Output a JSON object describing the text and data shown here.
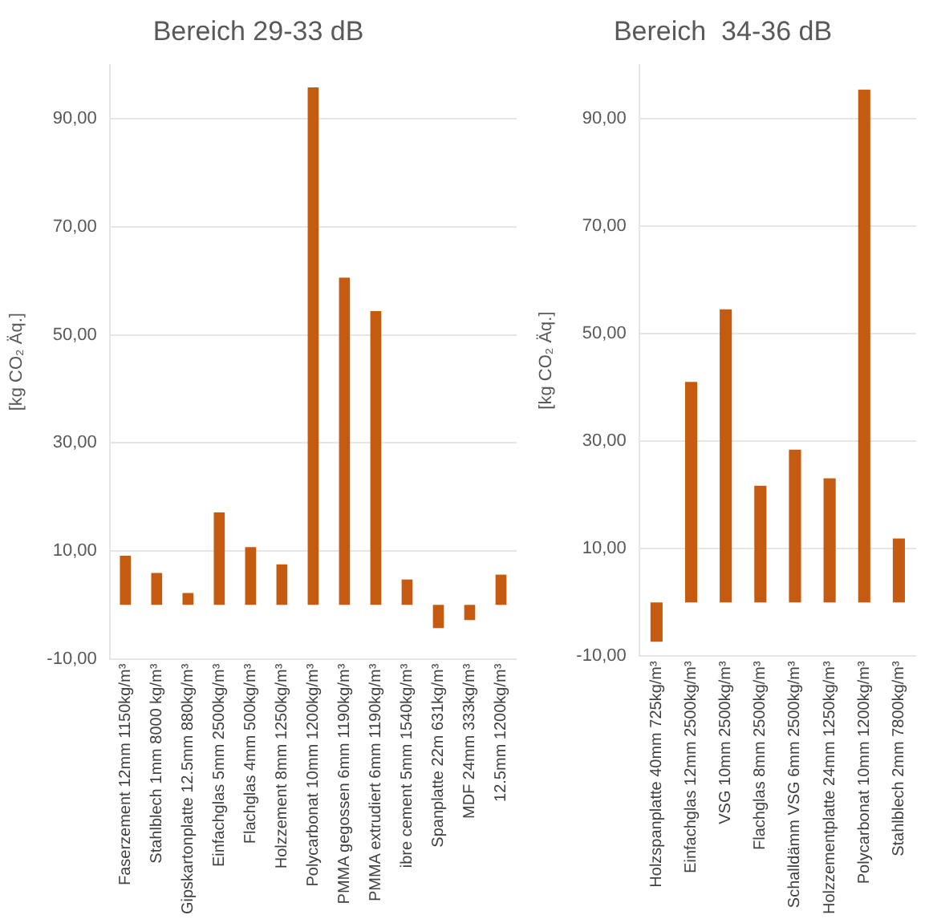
{
  "chart_data": [
    {
      "type": "bar",
      "title": "Bereich 29-33 dB",
      "ylabel": "[kg CO₂ Äq.]",
      "categories": [
        "Faserzement 12mm 1150kg/m³",
        "Stahlblech 1mm 8000 kg/m³",
        "Gipskartonplatte 12.5mm 880kg/m³",
        "Einfachglas 5mm 2500kg/m³",
        "Flachglas 4mm 500kg/m³",
        "Holzzement 8mm 1250kg/m³",
        "Polycarbonat 10mm 1200kg/m³",
        "PMMA gegossen 6mm 1190kg/m³",
        "PMMA extrudiert 6mm 1190kg/m³",
        "ibre cement 5mm 1540kg/m³",
        "Spanplatte 22m 631kg/m³",
        "MDF 24mm 333kg/m³",
        "12.5mm 1200kg/m³"
      ],
      "values": [
        9.1,
        5.9,
        2.2,
        17.1,
        10.7,
        7.5,
        95.8,
        60.6,
        54.4,
        4.7,
        -4.3,
        -2.8,
        5.6
      ],
      "color": "#c55a11",
      "ylim": [
        -10,
        100
      ],
      "yticks": [
        {
          "value": -10,
          "label": "-10,00"
        },
        {
          "value": 10,
          "label": "10,00"
        },
        {
          "value": 30,
          "label": "30,00"
        },
        {
          "value": 50,
          "label": "50,00"
        },
        {
          "value": 70,
          "label": "70,00"
        },
        {
          "value": 90,
          "label": "90,00"
        }
      ],
      "grid": "y",
      "legend": false
    },
    {
      "type": "bar",
      "title": "Bereich  34-36 dB",
      "ylabel": "[kg CO₂ Äq.]",
      "categories": [
        "Holzspanplatte 40mm 725kg/m³",
        "Einfachglas 12mm 2500kg/m³",
        "VSG 10mm 2500kg/m³",
        "Flachglas 8mm 2500kg/m³",
        "Schalldämm VSG 6mm 2500kg/m³",
        "Holzzementplatte 24mm 1250kg/m³",
        "Polycarbonat 10mm 1200kg/m³",
        "Stahlblech 2mm 7800kg/m³"
      ],
      "values": [
        -7.3,
        41.0,
        54.5,
        21.7,
        28.4,
        23.1,
        95.4,
        11.9
      ],
      "color": "#c55a11",
      "ylim": [
        -10,
        100
      ],
      "yticks": [
        {
          "value": -10,
          "label": "-10,00"
        },
        {
          "value": 10,
          "label": "10,00"
        },
        {
          "value": 30,
          "label": "30,00"
        },
        {
          "value": 50,
          "label": "50,00"
        },
        {
          "value": 70,
          "label": "70,00"
        },
        {
          "value": 90,
          "label": "90,00"
        }
      ],
      "grid": "y",
      "legend": false
    }
  ]
}
